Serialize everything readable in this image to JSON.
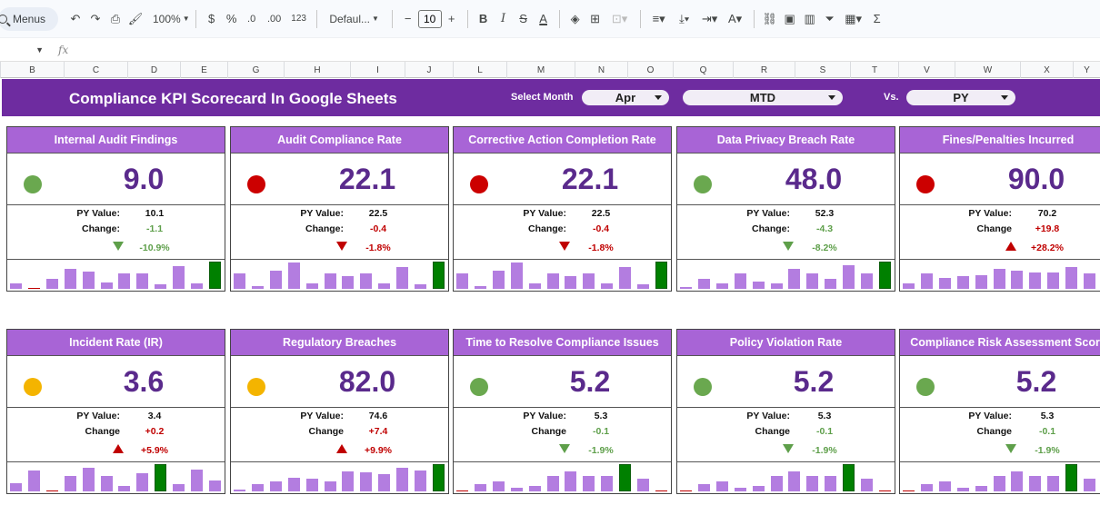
{
  "toolbar": {
    "menus_label": "Menus",
    "zoom": "100%",
    "currency": "$",
    "percent": "%",
    "dec_decrease": ".0",
    "dec_increase": ".00",
    "number_format": "123",
    "font": "Defaul...",
    "font_size": "10",
    "bold": "B",
    "italic": "I",
    "strike": "S",
    "text_color": "A",
    "sum": "Σ"
  },
  "formula_bar": {
    "fx": "fx"
  },
  "columns": [
    "B",
    "C",
    "D",
    "E",
    "G",
    "H",
    "I",
    "J",
    "L",
    "M",
    "N",
    "O",
    "Q",
    "R",
    "S",
    "T",
    "V",
    "W",
    "X",
    "Y"
  ],
  "header": {
    "title": "Compliance KPI Scorecard In Google Sheets",
    "select_month_label": "Select Month",
    "month": "Apr",
    "period": "MTD",
    "vs_label": "Vs.",
    "compare": "PY"
  },
  "colors": {
    "band": "#6e2ca0",
    "card_title": "#a864d6",
    "value": "#5a2a8c",
    "green": "#6aa84f",
    "red": "#cc0000",
    "yellow": "#f4b400",
    "bar": "#b37de0",
    "bar_current": "#008000",
    "pos_change": "#5e9f4a",
    "neg_change": "#c00000"
  },
  "cards": [
    {
      "title": "Internal Audit Findings",
      "value": "9.0",
      "status": "green",
      "py_label": "PY Value:",
      "py": "10.1",
      "change_label": "Change:",
      "change": "-1.1",
      "pct": "-10.9%",
      "trend": "down",
      "good": true,
      "bars": [
        0.2,
        0.02,
        0.35,
        0.72,
        0.62,
        0.22,
        0.56,
        0.58,
        0.15,
        0.82,
        0.2,
        1.0
      ]
    },
    {
      "title": "Audit Compliance Rate",
      "value": "22.1",
      "status": "red",
      "py_label": "PY Value:",
      "py": "22.5",
      "change_label": "Change:",
      "change": "-0.4",
      "pct": "-1.8%",
      "trend": "down",
      "good": false,
      "bars": [
        0.55,
        0.1,
        0.65,
        0.95,
        0.2,
        0.58,
        0.45,
        0.55,
        0.2,
        0.8,
        0.15,
        1.0
      ]
    },
    {
      "title": "Corrective Action Completion Rate",
      "value": "22.1",
      "status": "red",
      "py_label": "PY Value:",
      "py": "22.5",
      "change_label": "Change:",
      "change": "-0.4",
      "pct": "-1.8%",
      "trend": "down",
      "good": false,
      "bars": [
        0.55,
        0.1,
        0.65,
        0.95,
        0.2,
        0.58,
        0.45,
        0.55,
        0.2,
        0.8,
        0.15,
        1.0
      ]
    },
    {
      "title": "Data Privacy Breach Rate",
      "value": "48.0",
      "status": "green",
      "py_label": "PY Value:",
      "py": "52.3",
      "change_label": "Change:",
      "change": "-4.3",
      "pct": "-8.2%",
      "trend": "down",
      "good": true,
      "bars": [
        0.05,
        0.35,
        0.2,
        0.55,
        0.25,
        0.2,
        0.72,
        0.55,
        0.35,
        0.85,
        0.55,
        1.0
      ]
    },
    {
      "title": "Fines/Penalties Incurred",
      "value": "90.0",
      "status": "red",
      "py_label": "PY Value:",
      "py": "70.2",
      "change_label": "Change",
      "change": "+19.8",
      "pct": "+28.2%",
      "trend": "up",
      "good": false,
      "bars": [
        0.2,
        0.55,
        0.4,
        0.45,
        0.5,
        0.72,
        0.65,
        0.6,
        0.6,
        0.8,
        0.55,
        0.55
      ]
    },
    {
      "title": "Incident Rate (IR)",
      "value": "3.6",
      "status": "yellow",
      "py_label": "PY Value:",
      "py": "3.4",
      "change_label": "Change",
      "change": "+0.2",
      "pct": "+5.9%",
      "trend": "up",
      "good": false,
      "bars": [
        0.3,
        0.78,
        0.02,
        0.55,
        0.85,
        0.58,
        0.2,
        0.68,
        1.0,
        0.25,
        0.8,
        0.4
      ]
    },
    {
      "title": "Regulatory Breaches",
      "value": "82.0",
      "status": "yellow",
      "py_label": "PY Value:",
      "py": "74.6",
      "change_label": "Change",
      "change": "+7.4",
      "pct": "+9.9%",
      "trend": "up",
      "good": false,
      "bars": [
        0.05,
        0.25,
        0.35,
        0.5,
        0.45,
        0.35,
        0.72,
        0.7,
        0.62,
        0.85,
        0.78,
        1.0
      ]
    },
    {
      "title": "Time to Resolve Compliance Issues",
      "value": "5.2",
      "status": "green",
      "py_label": "PY Value:",
      "py": "5.3",
      "change_label": "Change",
      "change": "-0.1",
      "pct": "-1.9%",
      "trend": "down",
      "good": true,
      "bars": [
        0.02,
        0.25,
        0.35,
        0.12,
        0.2,
        0.55,
        0.72,
        0.55,
        0.55,
        1.0,
        0.45,
        0.02
      ]
    },
    {
      "title": "Policy Violation Rate",
      "value": "5.2",
      "status": "green",
      "py_label": "PY Value:",
      "py": "5.3",
      "change_label": "Change",
      "change": "-0.1",
      "pct": "-1.9%",
      "trend": "down",
      "good": true,
      "bars": [
        0.02,
        0.25,
        0.35,
        0.12,
        0.2,
        0.55,
        0.72,
        0.55,
        0.55,
        1.0,
        0.45,
        0.02
      ]
    },
    {
      "title": "Compliance Risk Assessment Score",
      "value": "5.2",
      "status": "green",
      "py_label": "PY Value:",
      "py": "5.3",
      "change_label": "Change",
      "change": "-0.1",
      "pct": "-1.9%",
      "trend": "down",
      "good": true,
      "bars": [
        0.02,
        0.25,
        0.35,
        0.12,
        0.2,
        0.55,
        0.72,
        0.55,
        0.55,
        1.0,
        0.45,
        0.02
      ]
    }
  ]
}
